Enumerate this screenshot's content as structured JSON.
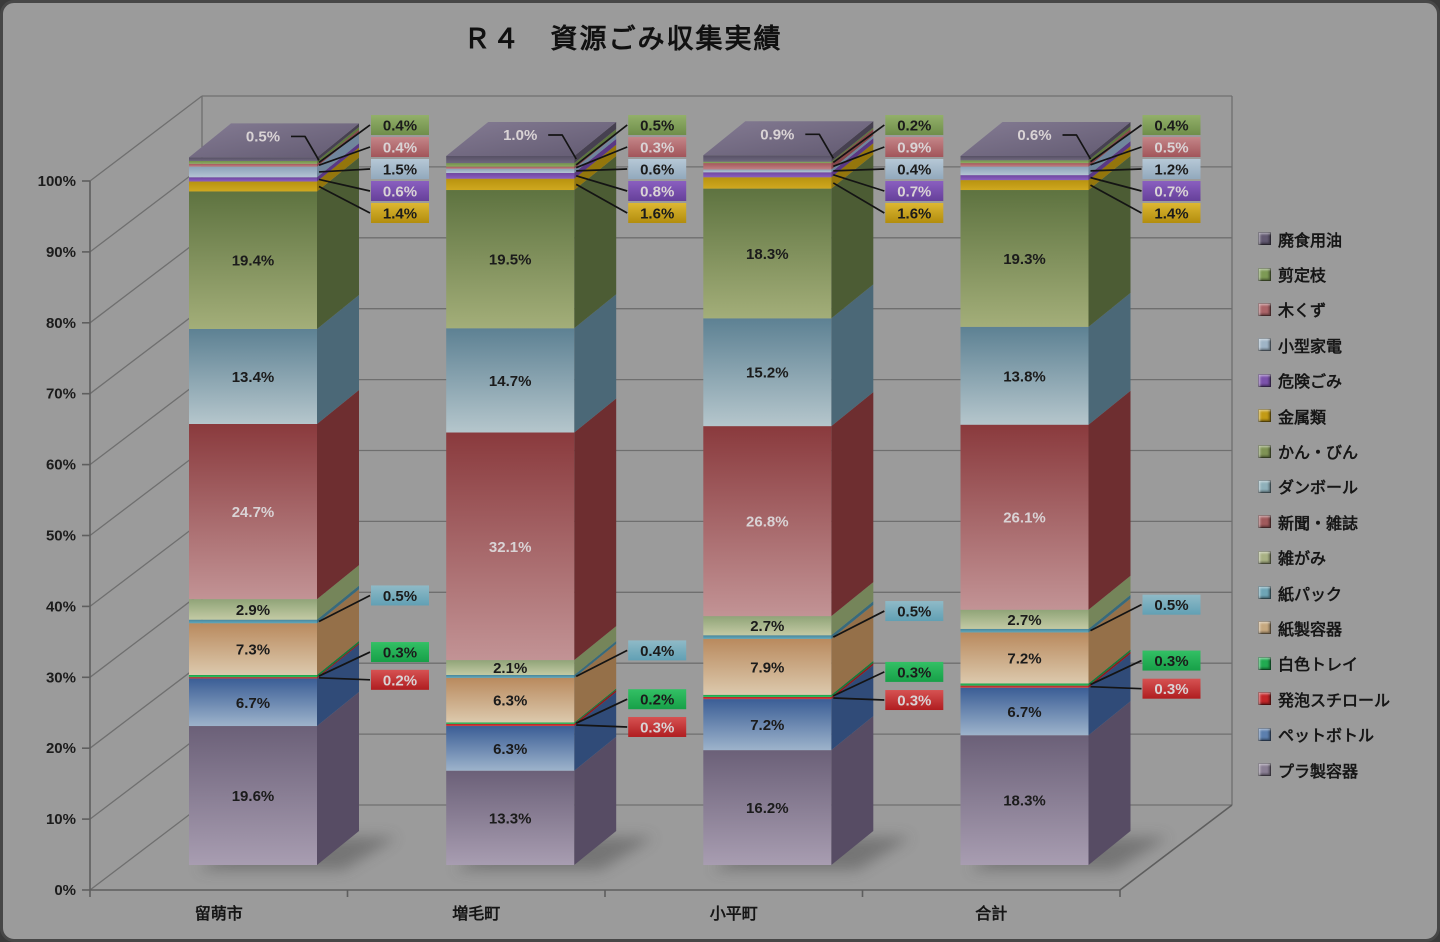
{
  "chart_data": {
    "type": "bar",
    "subtype": "3d-100-percent-stacked-column",
    "title": "Ｒ４　資源ごみ収集実績",
    "value_suffix": "%",
    "legend_position": "right",
    "categories": [
      "留萌市",
      "増毛町",
      "小平町",
      "合計"
    ],
    "y_axis": {
      "min": 0,
      "max": 100,
      "step": 10,
      "ticks": [
        "0%",
        "10%",
        "20%",
        "30%",
        "40%",
        "50%",
        "60%",
        "70%",
        "80%",
        "90%",
        "100%"
      ]
    },
    "series": [
      {
        "name": "プラ製容器",
        "values": [
          19.6,
          13.3,
          16.2,
          18.3
        ],
        "color": "#8a7f94",
        "front": [
          "#6b6078",
          "#a89db1"
        ],
        "side": "#574c64",
        "label": "bar",
        "text": "dark"
      },
      {
        "name": "ペットボトル",
        "values": [
          6.7,
          6.3,
          7.2,
          6.7
        ],
        "color": "#5c7fae",
        "front": [
          "#3b5e96",
          "#9db3cb"
        ],
        "side": "#304b78",
        "label": "bar",
        "text": "dark"
      },
      {
        "name": "発泡スチロール",
        "values": [
          0.2,
          0.3,
          0.3,
          0.3
        ],
        "color": "#c32629",
        "front": [
          "#b52023",
          "#d04548"
        ],
        "side": "#8f191c",
        "label": "lower",
        "text": "light",
        "callout": [
          "#d65252",
          "#b01d20"
        ]
      },
      {
        "name": "白色トレイ",
        "values": [
          0.3,
          0.2,
          0.3,
          0.3
        ],
        "color": "#21ab51",
        "front": [
          "#1b9e49",
          "#2fc162"
        ],
        "side": "#157a38",
        "label": "lower",
        "text": "dark",
        "callout": [
          "#33c065",
          "#17a048"
        ]
      },
      {
        "name": "紙製容器",
        "values": [
          7.3,
          6.3,
          7.9,
          7.2
        ],
        "color": "#c6a87f",
        "front": [
          "#b98a5e",
          "#dcc9ad"
        ],
        "side": "#957049",
        "label": "bar",
        "text": "dark"
      },
      {
        "name": "紙パック",
        "values": [
          0.5,
          0.4,
          0.5,
          0.5
        ],
        "color": "#6ea4b5",
        "front": [
          "#47869c",
          "#62a8ba"
        ],
        "side": "#386a7c",
        "label": "lower",
        "text": "dark",
        "callout": [
          "#8fbac7",
          "#61a0b4"
        ]
      },
      {
        "name": "雑がみ",
        "values": [
          2.9,
          2.1,
          2.7,
          2.7
        ],
        "color": "#a8b184",
        "front": [
          "#90a478",
          "#c3caa4"
        ],
        "side": "#75855a",
        "label": "bar",
        "text": "dark"
      },
      {
        "name": "新聞・雑誌",
        "values": [
          24.7,
          32.1,
          26.8,
          26.1
        ],
        "color": "#a05a5c",
        "front": [
          "#8a3a3d",
          "#c29395"
        ],
        "side": "#6e2e30",
        "label": "bar",
        "text": "light"
      },
      {
        "name": "ダンボール",
        "values": [
          13.4,
          14.7,
          15.2,
          13.8
        ],
        "color": "#8fb0ba",
        "front": [
          "#5d8193",
          "#b5c6cc"
        ],
        "side": "#4b6877",
        "label": "bar",
        "text": "dark"
      },
      {
        "name": "かん・びん",
        "values": [
          19.4,
          19.5,
          18.3,
          19.3
        ],
        "color": "#7f9355",
        "front": [
          "#5e7340",
          "#a3ae79"
        ],
        "side": "#4c5c34",
        "label": "bar",
        "text": "dark"
      },
      {
        "name": "金属類",
        "values": [
          1.4,
          1.6,
          1.6,
          1.4
        ],
        "color": "#c39b16",
        "front": [
          "#b8930f",
          "#cfa81f"
        ],
        "side": "#94760c",
        "label": "upper",
        "text": "dark",
        "callout": [
          "#ddb732",
          "#b28d0e"
        ]
      },
      {
        "name": "危険ごみ",
        "values": [
          0.6,
          0.8,
          0.7,
          0.7
        ],
        "color": "#7b52ab",
        "front": [
          "#6f46a0",
          "#8a5fc0"
        ],
        "side": "#5a3884",
        "label": "upper",
        "text": "light",
        "callout": [
          "#8a5fc0",
          "#66409a"
        ]
      },
      {
        "name": "小型家電",
        "values": [
          1.5,
          0.6,
          0.4,
          1.2
        ],
        "color": "#9fb4c6",
        "front": [
          "#8ba2b8",
          "#b4c5d4"
        ],
        "side": "#70869c",
        "label": "upper",
        "text": "dark",
        "callout": [
          "#b6c8d6",
          "#92a9bd"
        ]
      },
      {
        "name": "木くず",
        "values": [
          0.4,
          0.3,
          0.9,
          0.5
        ],
        "color": "#ab6468",
        "front": [
          "#a4575b",
          "#c08184"
        ],
        "side": "#86464a",
        "label": "upper",
        "text": "light",
        "callout": [
          "#c48588",
          "#a2555a"
        ]
      },
      {
        "name": "剪定枝",
        "values": [
          0.4,
          0.5,
          0.2,
          0.4
        ],
        "color": "#7d9a55",
        "front": [
          "#71904c",
          "#8fac62"
        ],
        "side": "#5c753d",
        "label": "upper",
        "text": "dark",
        "callout": [
          "#93b06a",
          "#6f8e4a"
        ]
      },
      {
        "name": "廃食用油",
        "values": [
          0.5,
          1.0,
          0.9,
          0.6
        ],
        "color": "#635a72",
        "front": [
          "#565064",
          "#6f677e"
        ],
        "side": "#464050",
        "label": "top",
        "text": "light"
      }
    ]
  }
}
